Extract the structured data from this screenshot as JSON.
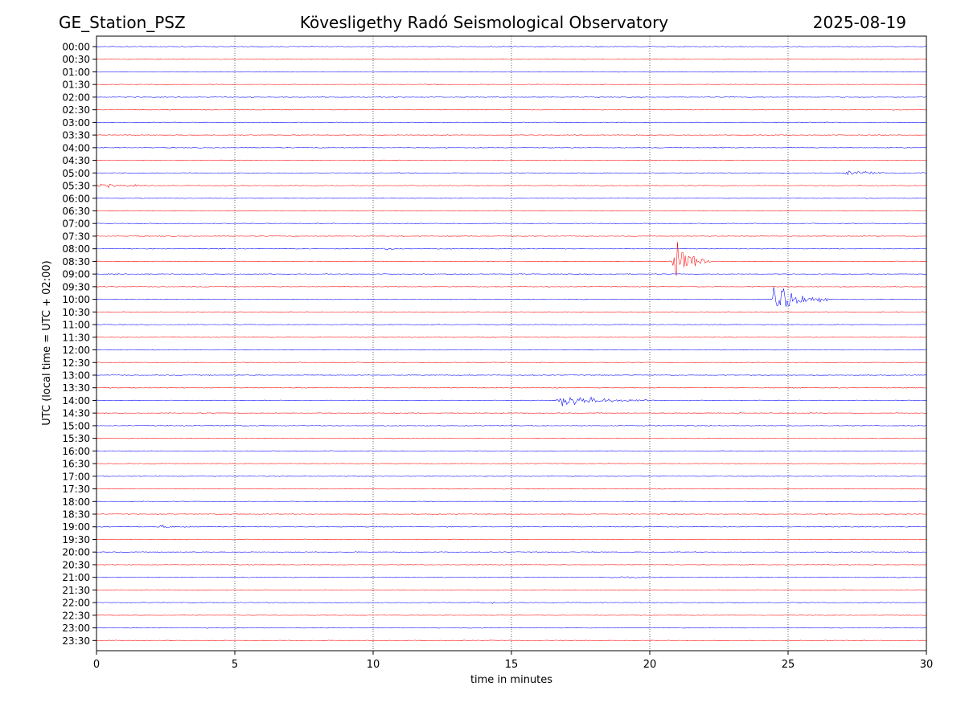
{
  "header": {
    "station": "GE_Station_PSZ",
    "observatory": "Kövesligethy Radó Seismological Observatory",
    "date": "2025-08-19"
  },
  "chart_data": {
    "type": "line",
    "title": "Kövesligethy Radó Seismological Observatory",
    "xlabel": "time in minutes",
    "ylabel": "UTC (local time = UTC + 02:00)",
    "xlim": [
      0,
      30
    ],
    "x_ticks": [
      0,
      5,
      10,
      15,
      20,
      25,
      30
    ],
    "grid": {
      "x": true,
      "style": "dotted"
    },
    "trace_colors": [
      "#0000ff",
      "#ff0000"
    ],
    "rows": [
      "00:00",
      "00:30",
      "01:00",
      "01:30",
      "02:00",
      "02:30",
      "03:00",
      "03:30",
      "04:00",
      "04:30",
      "05:00",
      "05:30",
      "06:00",
      "06:30",
      "07:00",
      "07:30",
      "08:00",
      "08:30",
      "09:00",
      "09:30",
      "10:00",
      "10:30",
      "11:00",
      "11:30",
      "12:00",
      "12:30",
      "13:00",
      "13:30",
      "14:00",
      "14:30",
      "15:00",
      "15:30",
      "16:00",
      "16:30",
      "17:00",
      "17:30",
      "18:00",
      "18:30",
      "19:00",
      "19:30",
      "20:00",
      "20:30",
      "21:00",
      "21:30",
      "22:00",
      "22:30",
      "23:00",
      "23:30"
    ],
    "events": [
      {
        "row": "05:00",
        "start_min": 27.0,
        "end_min": 30.0,
        "amplitude": 0.35
      },
      {
        "row": "05:30",
        "start_min": 0.0,
        "end_min": 2.8,
        "amplitude": 0.22
      },
      {
        "row": "08:00",
        "start_min": 10.3,
        "end_min": 11.6,
        "amplitude": 0.18
      },
      {
        "row": "08:30",
        "start_min": 20.8,
        "end_min": 22.2,
        "amplitude": 3.5
      },
      {
        "row": "10:00",
        "start_min": 24.4,
        "end_min": 26.5,
        "amplitude": 2.5
      },
      {
        "row": "14:00",
        "start_min": 16.6,
        "end_min": 20.5,
        "amplitude": 0.8
      },
      {
        "row": "14:30",
        "start_min": 23.0,
        "end_min": 24.2,
        "amplitude": 0.12
      },
      {
        "row": "14:30",
        "start_min": 27.3,
        "end_min": 28.0,
        "amplitude": 0.12
      },
      {
        "row": "19:00",
        "start_min": 2.2,
        "end_min": 3.6,
        "amplitude": 0.2
      },
      {
        "row": "21:00",
        "start_min": 18.5,
        "end_min": 20.8,
        "amplitude": 0.12
      },
      {
        "row": "22:00",
        "start_min": 13.4,
        "end_min": 17.5,
        "amplitude": 0.12
      }
    ]
  }
}
